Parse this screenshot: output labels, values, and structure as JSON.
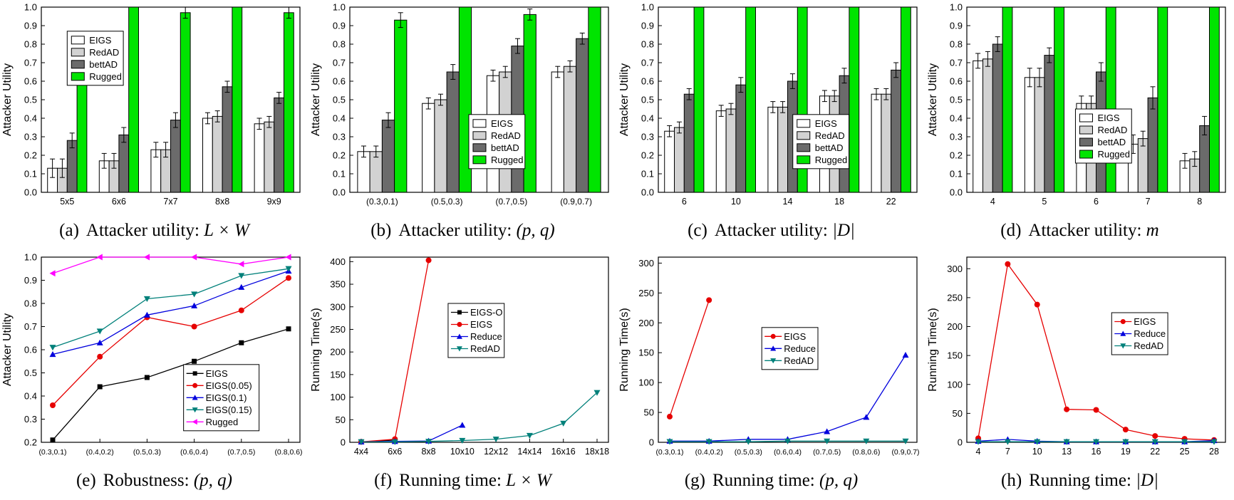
{
  "figure": {
    "background": "#ffffff"
  },
  "chart_data": [
    {
      "id": "a",
      "type": "bar",
      "ylabel": "Attacker Utility",
      "ylim": [
        0,
        1.0
      ],
      "ytick_step": 0.1,
      "ydecimals": 1,
      "categories": [
        "5x5",
        "6x6",
        "7x7",
        "8x8",
        "9x9"
      ],
      "series": [
        {
          "name": "EIGS",
          "color": "#ffffff",
          "values": [
            0.13,
            0.17,
            0.23,
            0.4,
            0.37
          ],
          "errors": [
            0.05,
            0.04,
            0.04,
            0.03,
            0.03
          ]
        },
        {
          "name": "RedAD",
          "color": "#d2d2d2",
          "values": [
            0.13,
            0.17,
            0.23,
            0.41,
            0.38
          ],
          "errors": [
            0.05,
            0.04,
            0.04,
            0.03,
            0.03
          ]
        },
        {
          "name": "bettAD",
          "color": "#6b6b6b",
          "values": [
            0.28,
            0.31,
            0.39,
            0.57,
            0.51
          ],
          "errors": [
            0.04,
            0.04,
            0.04,
            0.03,
            0.03
          ]
        },
        {
          "name": "Rugged",
          "color": "#00e400",
          "values": [
            0.73,
            1.0,
            0.97,
            1.0,
            0.97
          ],
          "errors": [
            0.08,
            0,
            0.03,
            0,
            0.03
          ]
        }
      ],
      "legend": {
        "x": 0.1,
        "y": 0.13
      },
      "caption": {
        "label": "(a)",
        "text": "Attacker utility:",
        "math": "L × W"
      }
    },
    {
      "id": "b",
      "type": "bar",
      "ylabel": "Attacker Utility",
      "ylim": [
        0,
        1.0
      ],
      "ytick_step": 0.1,
      "ydecimals": 1,
      "categories": [
        "(0.3,0.1)",
        "(0.5,0.3)",
        "(0.7,0.5)",
        "(0.9,0.7)"
      ],
      "series": [
        {
          "name": "EIGS",
          "color": "#ffffff",
          "values": [
            0.22,
            0.48,
            0.63,
            0.65
          ],
          "errors": [
            0.03,
            0.03,
            0.03,
            0.03
          ]
        },
        {
          "name": "RedAD",
          "color": "#d2d2d2",
          "values": [
            0.22,
            0.5,
            0.65,
            0.68
          ],
          "errors": [
            0.03,
            0.03,
            0.03,
            0.03
          ]
        },
        {
          "name": "bettAD",
          "color": "#6b6b6b",
          "values": [
            0.39,
            0.65,
            0.79,
            0.83
          ],
          "errors": [
            0.04,
            0.04,
            0.04,
            0.03
          ]
        },
        {
          "name": "Rugged",
          "color": "#00e400",
          "values": [
            0.93,
            1.0,
            0.96,
            1.0
          ],
          "errors": [
            0.04,
            0,
            0.03,
            0
          ]
        }
      ],
      "legend": {
        "x": 0.46,
        "y": 0.58
      },
      "caption": {
        "label": "(b)",
        "text": "Attacker utility:",
        "math": "(p, q)"
      }
    },
    {
      "id": "c",
      "type": "bar",
      "ylabel": "Attacker Utility",
      "ylim": [
        0,
        1.0
      ],
      "ytick_step": 0.1,
      "ydecimals": 1,
      "categories": [
        "6",
        "10",
        "14",
        "18",
        "22"
      ],
      "series": [
        {
          "name": "EIGS",
          "color": "#ffffff",
          "values": [
            0.33,
            0.44,
            0.46,
            0.52,
            0.53
          ],
          "errors": [
            0.03,
            0.03,
            0.03,
            0.03,
            0.03
          ]
        },
        {
          "name": "RedAD",
          "color": "#d2d2d2",
          "values": [
            0.35,
            0.45,
            0.46,
            0.52,
            0.53
          ],
          "errors": [
            0.03,
            0.03,
            0.03,
            0.03,
            0.03
          ]
        },
        {
          "name": "bettAD",
          "color": "#6b6b6b",
          "values": [
            0.53,
            0.58,
            0.6,
            0.63,
            0.66
          ],
          "errors": [
            0.03,
            0.04,
            0.04,
            0.04,
            0.04
          ]
        },
        {
          "name": "Rugged",
          "color": "#00e400",
          "values": [
            1.0,
            1.0,
            1.0,
            1.0,
            1.0
          ],
          "errors": [
            0,
            0,
            0,
            0,
            0
          ]
        }
      ],
      "legend": {
        "x": 0.52,
        "y": 0.58
      },
      "caption": {
        "label": "(c)",
        "text": "Attacker utility:",
        "math": "|D|"
      }
    },
    {
      "id": "d",
      "type": "bar",
      "ylabel": "Attacker Utility",
      "ylim": [
        0,
        1.0
      ],
      "ytick_step": 0.1,
      "ydecimals": 1,
      "categories": [
        "4",
        "5",
        "6",
        "7",
        "8"
      ],
      "series": [
        {
          "name": "EIGS",
          "color": "#ffffff",
          "values": [
            0.71,
            0.62,
            0.48,
            0.26,
            0.17
          ],
          "errors": [
            0.04,
            0.05,
            0.04,
            0.05,
            0.04
          ]
        },
        {
          "name": "RedAD",
          "color": "#d2d2d2",
          "values": [
            0.72,
            0.62,
            0.48,
            0.29,
            0.18
          ],
          "errors": [
            0.04,
            0.05,
            0.04,
            0.04,
            0.04
          ]
        },
        {
          "name": "bettAD",
          "color": "#6b6b6b",
          "values": [
            0.8,
            0.74,
            0.65,
            0.51,
            0.36
          ],
          "errors": [
            0.04,
            0.04,
            0.05,
            0.06,
            0.05
          ]
        },
        {
          "name": "Rugged",
          "color": "#00e400",
          "values": [
            1.0,
            1.0,
            1.0,
            1.0,
            1.0
          ],
          "errors": [
            0,
            0,
            0,
            0,
            0
          ]
        }
      ],
      "legend": {
        "x": 0.42,
        "y": 0.55
      },
      "caption": {
        "label": "(d)",
        "text": "Attacker utility:",
        "math": "m"
      }
    },
    {
      "id": "e",
      "type": "line",
      "ylabel": "Attacker Utility",
      "ylim": [
        0.2,
        1.0
      ],
      "ytick_step": 0.1,
      "ydecimals": 1,
      "categories": [
        "(0.3,0.1)",
        "(0.4,0.2)",
        "(0.5,0.3)",
        "(0.6,0.4)",
        "(0.7,0.5)",
        "(0.8,0.6)"
      ],
      "series": [
        {
          "name": "EIGS",
          "color": "#000000",
          "marker": "square",
          "values": [
            0.21,
            0.44,
            0.48,
            0.55,
            0.63,
            0.69
          ]
        },
        {
          "name": "EIGS(0.05)",
          "color": "#e60000",
          "marker": "circle",
          "values": [
            0.36,
            0.57,
            0.74,
            0.7,
            0.77,
            0.91
          ]
        },
        {
          "name": "EIGS(0.1)",
          "color": "#0000dd",
          "marker": "triangle-up",
          "values": [
            0.58,
            0.63,
            0.75,
            0.79,
            0.87,
            0.94
          ]
        },
        {
          "name": "EIGS(0.15)",
          "color": "#00807a",
          "marker": "triangle-down",
          "values": [
            0.61,
            0.68,
            0.82,
            0.84,
            0.92,
            0.95
          ]
        },
        {
          "name": "Rugged",
          "color": "#ff00ff",
          "marker": "triangle-left",
          "values": [
            0.93,
            1.0,
            1.0,
            1.0,
            0.97,
            1.0
          ]
        }
      ],
      "legend": {
        "x": 0.55,
        "y": 0.58
      },
      "caption": {
        "label": "(e)",
        "text": "Robustness:",
        "math": "(p, q)"
      }
    },
    {
      "id": "f",
      "type": "line",
      "ylabel": "Running Time(s)",
      "ylim": [
        0,
        410
      ],
      "ytick_step": 50,
      "ytick_max": 400,
      "ydecimals": 0,
      "categories": [
        "4x4",
        "6x6",
        "8x8",
        "10x10",
        "12x12",
        "14x14",
        "16x16",
        "18x18"
      ],
      "series": [
        {
          "name": "EIGS-O",
          "color": "#000000",
          "marker": "square",
          "values": [
            1,
            5,
            null,
            null,
            null,
            null,
            null,
            null
          ]
        },
        {
          "name": "EIGS",
          "color": "#e60000",
          "marker": "circle",
          "values": [
            1,
            7,
            403,
            null,
            null,
            null,
            null,
            null
          ]
        },
        {
          "name": "Reduce",
          "color": "#0000dd",
          "marker": "triangle-up",
          "values": [
            1,
            2,
            3,
            38,
            null,
            null,
            null,
            null
          ]
        },
        {
          "name": "RedAD",
          "color": "#00807a",
          "marker": "triangle-down",
          "values": [
            1,
            1,
            2,
            4,
            7,
            15,
            42,
            110
          ]
        }
      ],
      "legend": {
        "x": 0.38,
        "y": 0.25
      },
      "caption": {
        "label": "(f)",
        "text": "Running time:",
        "math": "L × W"
      }
    },
    {
      "id": "g",
      "type": "line",
      "ylabel": "Running Time(s)",
      "ylim": [
        0,
        310
      ],
      "ytick_step": 50,
      "ytick_max": 300,
      "ydecimals": 0,
      "categories": [
        "(0.3,0.1)",
        "(0.4,0.2)",
        "(0.5,0.3)",
        "(0.6,0.4)",
        "(0.7,0.5)",
        "(0.8,0.6)",
        "(0.9,0.7)"
      ],
      "series": [
        {
          "name": "EIGS",
          "color": "#e60000",
          "marker": "circle",
          "values": [
            43,
            238,
            null,
            null,
            null,
            null,
            null
          ]
        },
        {
          "name": "Reduce",
          "color": "#0000dd",
          "marker": "triangle-up",
          "values": [
            2,
            2,
            5,
            5,
            18,
            42,
            146
          ]
        },
        {
          "name": "RedAD",
          "color": "#00807a",
          "marker": "triangle-down",
          "values": [
            1,
            1,
            1,
            2,
            2,
            2,
            2
          ]
        }
      ],
      "legend": {
        "x": 0.4,
        "y": 0.38
      },
      "caption": {
        "label": "(g)",
        "text": "Running time:",
        "math": "(p, q)"
      }
    },
    {
      "id": "h",
      "type": "line",
      "ylabel": "Running Time(s)",
      "ylim": [
        0,
        320
      ],
      "ytick_step": 50,
      "ytick_max": 300,
      "ydecimals": 0,
      "categories": [
        "4",
        "7",
        "10",
        "13",
        "16",
        "19",
        "22",
        "25",
        "28"
      ],
      "series": [
        {
          "name": "EIGS",
          "color": "#e60000",
          "marker": "circle",
          "values": [
            7,
            308,
            238,
            57,
            56,
            22,
            11,
            6,
            4
          ]
        },
        {
          "name": "Reduce",
          "color": "#0000dd",
          "marker": "triangle-up",
          "values": [
            2,
            5,
            2,
            1,
            1,
            1,
            1,
            1,
            3
          ]
        },
        {
          "name": "RedAD",
          "color": "#00807a",
          "marker": "triangle-down",
          "values": [
            1,
            1,
            1,
            1,
            1,
            1,
            1,
            1,
            1
          ]
        }
      ],
      "legend": {
        "x": 0.56,
        "y": 0.3
      },
      "caption": {
        "label": "(h)",
        "text": "Running time:",
        "math": "|D|"
      }
    }
  ]
}
